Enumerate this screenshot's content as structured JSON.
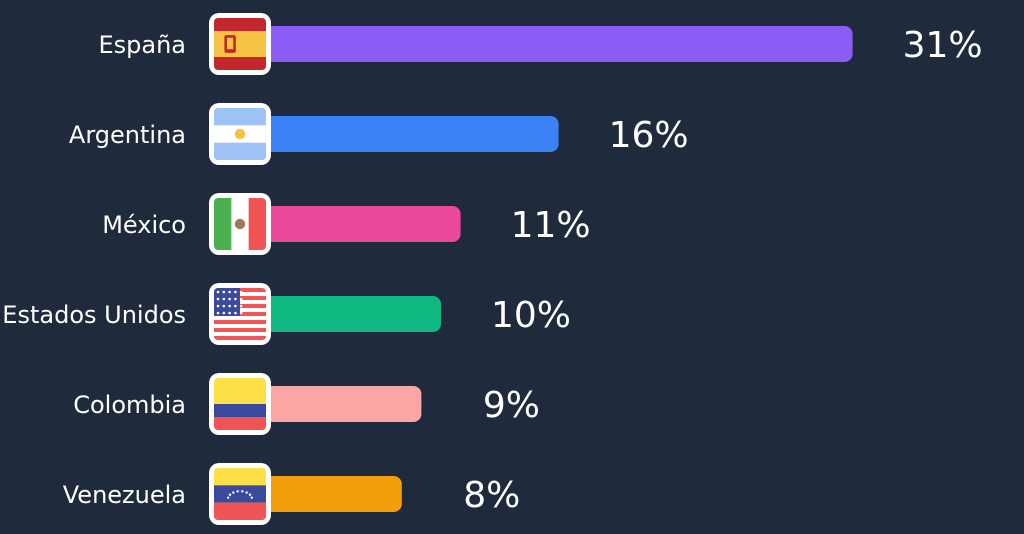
{
  "chart_data": {
    "type": "bar",
    "orientation": "horizontal",
    "categories": [
      "España",
      "Argentina",
      "México",
      "Estados Unidos",
      "Colombia",
      "Venezuela"
    ],
    "values": [
      31,
      16,
      11,
      10,
      9,
      8
    ],
    "value_labels": [
      "31%",
      "16%",
      "11%",
      "10%",
      "9%",
      "8%"
    ],
    "bar_colors": [
      "#8b5cf6",
      "#3b82f6",
      "#ec4899",
      "#10b981",
      "#fca5a5",
      "#f59e0b"
    ],
    "flag_icons": [
      "flag-spain-icon",
      "flag-argentina-icon",
      "flag-mexico-icon",
      "flag-usa-icon",
      "flag-colombia-icon",
      "flag-venezuela-icon"
    ],
    "title": "",
    "xlabel": "",
    "ylabel": "",
    "grid": false
  },
  "colors": {
    "background": "#1f2a3c",
    "text": "#ffffff"
  }
}
